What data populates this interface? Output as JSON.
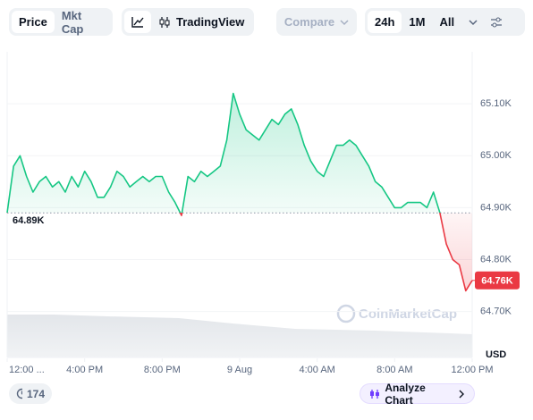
{
  "toolbar": {
    "tabs": [
      "Price",
      "Mkt Cap"
    ],
    "tradingview": "TradingView",
    "compare": "Compare",
    "ranges": [
      "24h",
      "1M",
      "All"
    ]
  },
  "chart_data": {
    "type": "line",
    "values": [
      64890,
      64980,
      65000,
      64960,
      64930,
      64950,
      64960,
      64940,
      64950,
      64930,
      64960,
      64940,
      64970,
      64950,
      64920,
      64920,
      64940,
      64970,
      64960,
      64940,
      64950,
      64960,
      64950,
      64960,
      64960,
      64930,
      64910,
      64885,
      64960,
      64950,
      64970,
      64960,
      64970,
      64980,
      65030,
      65120,
      65080,
      65050,
      65040,
      65030,
      65050,
      65070,
      65060,
      65080,
      65090,
      65060,
      65020,
      64990,
      64970,
      64960,
      64990,
      65020,
      65020,
      65030,
      65020,
      65000,
      64980,
      64950,
      64940,
      64920,
      64900,
      64900,
      64910,
      64910,
      64910,
      64900,
      64930,
      64890,
      64830,
      64800,
      64790,
      64740,
      64760
    ],
    "color": "#16c784",
    "below_color": "#ea3943",
    "baseline": {
      "value": 64890,
      "label": "64.89K"
    },
    "last": {
      "value": 64760,
      "label": "64.76K"
    },
    "currency": "USD",
    "watermark": "CoinMarketCap",
    "ylim": [
      64610,
      65200
    ],
    "yticks": [
      {
        "value": 64700,
        "label": "64.70K"
      },
      {
        "value": 64800,
        "label": "64.80K"
      },
      {
        "value": 64900,
        "label": "64.90K"
      },
      {
        "value": 65000,
        "label": "65.00K"
      },
      {
        "value": 65100,
        "label": "65.10K"
      }
    ],
    "xlim": [
      0,
      72
    ],
    "xticks": [
      {
        "value": 0,
        "label": "12:00 ..."
      },
      {
        "value": 12,
        "label": "4:00 PM"
      },
      {
        "value": 24,
        "label": "8:00 PM"
      },
      {
        "value": 36,
        "label": "9 Aug"
      },
      {
        "value": 48,
        "label": "4:00 AM"
      },
      {
        "value": 60,
        "label": "8:00 AM"
      },
      {
        "value": 72,
        "label": "12:00 PM"
      }
    ],
    "grid": true
  },
  "footer": {
    "badge": "174",
    "analyze": "Analyze Chart"
  }
}
